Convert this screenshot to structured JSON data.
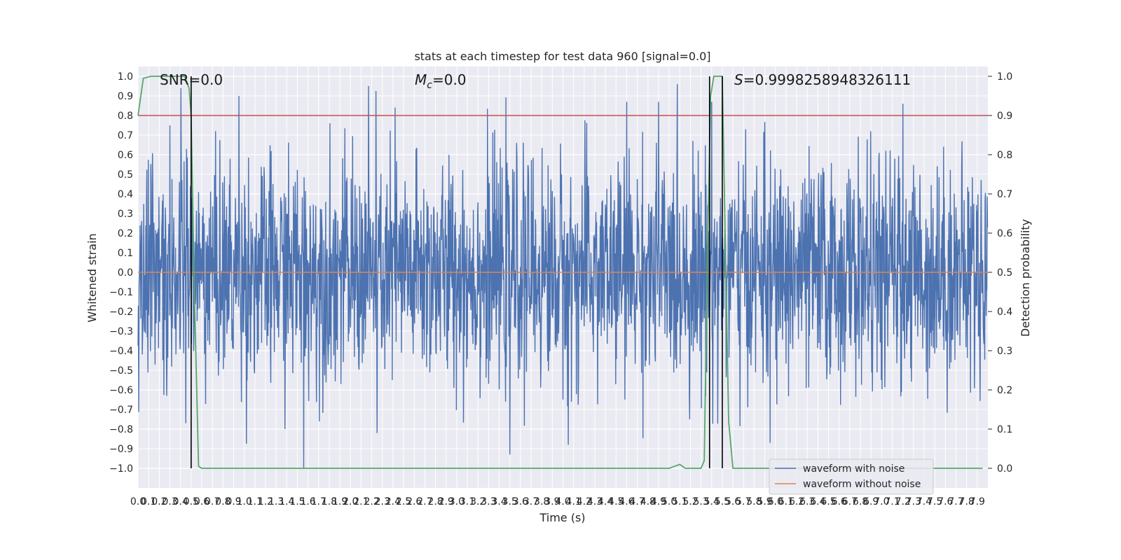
{
  "chart_data": {
    "type": "line",
    "title": "stats at each timestep for test data 960 [signal=0.0]",
    "xlabel": "Time (s)",
    "ylabel": "Whitened strain",
    "y2label": "Detection probability",
    "xlim": [
      0.0,
      8.0
    ],
    "ylim": [
      -1.1,
      1.05
    ],
    "y2lim": [
      -0.05,
      1.025
    ],
    "grid": true,
    "background": "#eaeaf2",
    "annotations": {
      "snr": "SNR=0.0",
      "mc_symbol": "M",
      "mc_sub": "c",
      "mc_value": "=0.0",
      "s_symbol": "S",
      "s_value": "=0.9998258948326111"
    },
    "x_tick_labels": [
      "0.0",
      "0.1",
      "0.2",
      "0.3",
      "0.4",
      "0.5",
      "0.6",
      "0.7",
      "0.8",
      "0.9",
      "1.0",
      "1.1",
      "1.2",
      "1.3",
      "1.4",
      "1.5",
      "1.6",
      "1.7",
      "1.8",
      "1.9",
      "2.0",
      "2.1",
      "2.2",
      "2.3",
      "2.4",
      "2.5",
      "2.6",
      "2.7",
      "2.8",
      "2.9",
      "3.0",
      "3.1",
      "3.2",
      "3.3",
      "3.4",
      "3.5",
      "3.6",
      "3.7",
      "3.8",
      "3.9",
      "4.0",
      "4.1",
      "4.2",
      "4.3",
      "4.4",
      "4.5",
      "4.6",
      "4.7",
      "4.8",
      "4.9",
      "5.0",
      "5.1",
      "5.2",
      "5.3",
      "5.4",
      "5.5",
      "5.6",
      "5.7",
      "5.8",
      "5.9",
      "6.0",
      "6.1",
      "6.2",
      "6.3",
      "6.4",
      "6.5",
      "6.6",
      "6.7",
      "6.8",
      "6.9",
      "7.0",
      "7.1",
      "7.2",
      "7.3",
      "7.4",
      "7.5",
      "7.6",
      "7.7",
      "7.8",
      "7.9"
    ],
    "y_tick_labels": [
      "1.0",
      "0.9",
      "0.8",
      "0.7",
      "0.6",
      "0.5",
      "0.4",
      "0.3",
      "0.2",
      "0.1",
      "0.0",
      "-0.1",
      "-0.2",
      "-0.3",
      "-0.4",
      "-0.5",
      "-0.6",
      "-0.7",
      "-0.8",
      "-0.9",
      "-1.0"
    ],
    "y2_tick_labels": [
      "1.0",
      "0.9",
      "0.8",
      "0.7",
      "0.6",
      "0.5",
      "0.4",
      "0.3",
      "0.2",
      "0.1",
      "0.0"
    ],
    "threshold": 0.9,
    "vlines": [
      0.5,
      5.38,
      5.5
    ],
    "series": [
      {
        "name": "waveform with noise",
        "color": "#4c72b0",
        "noise_std": 0.28,
        "spikes": [
          {
            "t": 0.3,
            "v": 0.75
          },
          {
            "t": 0.95,
            "v": 0.9
          },
          {
            "t": 2.17,
            "v": 0.95
          },
          {
            "t": 2.42,
            "v": 0.84
          },
          {
            "t": 5.4,
            "v": 0.87
          },
          {
            "t": 7.2,
            "v": 0.86
          },
          {
            "t": 4.6,
            "v": 0.87
          },
          {
            "t": 4.9,
            "v": 0.87
          },
          {
            "t": 1.56,
            "v": -1.0
          },
          {
            "t": 3.5,
            "v": -0.93
          },
          {
            "t": 4.05,
            "v": -0.88
          },
          {
            "t": 5.95,
            "v": -0.87
          },
          {
            "t": 0.45,
            "v": -0.77
          },
          {
            "t": 2.25,
            "v": -0.82
          }
        ]
      },
      {
        "name": "waveform without noise",
        "color": "#dd8452",
        "value": 0.0
      },
      {
        "name": "detection probability",
        "color": "#55a868",
        "axis": "right",
        "x": [
          0.0,
          0.05,
          0.12,
          0.2,
          0.3,
          0.38,
          0.44,
          0.48,
          0.5,
          0.53,
          0.57,
          0.6,
          4.95,
          5.0,
          5.05,
          5.1,
          5.15,
          5.25,
          5.3,
          5.33,
          5.36,
          5.39,
          5.42,
          5.45,
          5.5,
          5.53,
          5.56,
          5.6,
          7.95
        ],
        "y": [
          0.9,
          0.995,
          1.0,
          1.0,
          1.0,
          1.0,
          1.0,
          0.97,
          0.9,
          0.45,
          0.005,
          0.0,
          0.0,
          0.0,
          0.005,
          0.01,
          0.0,
          0.0,
          0.0,
          0.02,
          0.55,
          0.95,
          1.0,
          1.0,
          1.0,
          0.55,
          0.12,
          0.0,
          0.0
        ]
      }
    ],
    "colors": {
      "threshold": "#c44e52",
      "vline": "#000000"
    }
  },
  "legend": {
    "items": [
      {
        "label": "waveform with noise",
        "color": "#4c72b0"
      },
      {
        "label": "waveform without noise",
        "color": "#dd8452"
      }
    ]
  }
}
